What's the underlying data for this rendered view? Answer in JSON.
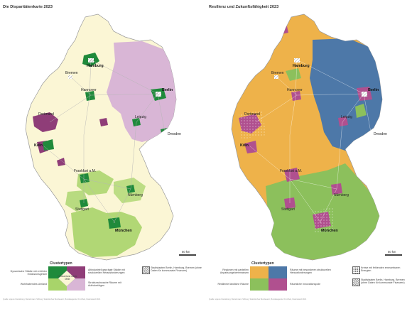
{
  "left": {
    "title": "Die Disparitätenkarte 2023",
    "legend_title": "Clustertypen",
    "legend": [
      {
        "label": "Dynamische Städte mit erhöhter Exklusionsgefahr",
        "color": "#1f8a3b"
      },
      {
        "label": "Wohlhabendes Umland",
        "color": "#a8d46a"
      },
      {
        "label": "Altindustriell geprägte Städte mit strukturellen Herausforderungen",
        "color": "#8f3d78"
      },
      {
        "label": "Strukturschwache Räume mit Aufholerfolgen",
        "color": "#d9b6d6"
      },
      {
        "label": "Deutschland solide Mitte",
        "color": "#fbf6d5"
      },
      {
        "label": "Stadtstaaten Berlin, Hamburg, Bremen (ohne Daten für kommunale Finanzen)",
        "color": "hatch"
      }
    ],
    "scale": "50 km",
    "source": "Quelle: eigene Darstellung, Bertelsmann Stiftung, Statistisches Bundesamt, Bundesagentur für Arbeit, Datenstand 2021",
    "cities": [
      {
        "name": "Hamburg",
        "bold": true
      },
      {
        "name": "Bremen",
        "bold": false
      },
      {
        "name": "Hannover",
        "bold": false
      },
      {
        "name": "Berlin",
        "bold": true
      },
      {
        "name": "Dortmund",
        "bold": false
      },
      {
        "name": "Köln",
        "bold": true
      },
      {
        "name": "Leipzig",
        "bold": false
      },
      {
        "name": "Dresden",
        "bold": false
      },
      {
        "name": "Frankfurt a.M.",
        "bold": false
      },
      {
        "name": "Nürnberg",
        "bold": false
      },
      {
        "name": "Stuttgart",
        "bold": false
      },
      {
        "name": "München",
        "bold": true
      }
    ]
  },
  "right": {
    "title": "Resilienz und Zukunftsfähigkeit 2023",
    "legend_title": "Clustertypen",
    "legend": [
      {
        "label": "Regionen mit partiellen Anpassungshemmnissen",
        "color": "#eeb24a"
      },
      {
        "label": "Resiliente ländliche Räume",
        "color": "#8cc05c"
      },
      {
        "label": "Räume mit besonderen strukturellen Herausforderungen",
        "color": "#4d78a8"
      },
      {
        "label": "Räumliche Innovationspole",
        "color": "#b0508f"
      },
      {
        "label": "Kreise mit fehlenden erneuerbaren Energien",
        "color": "dots"
      },
      {
        "label": "Stadtstaaten Berlin, Hamburg, Bremen (ohne Daten für kommunale Finanzen)",
        "color": "hatch"
      }
    ],
    "scale": "50 km",
    "source": "Quelle: eigene Darstellung, Bertelsmann Stiftung, Statistisches Bundesamt, Bundesagentur für Arbeit, Datenstand 2021",
    "cities": [
      {
        "name": "Hamburg",
        "bold": true
      },
      {
        "name": "Bremen",
        "bold": false
      },
      {
        "name": "Hannover",
        "bold": false
      },
      {
        "name": "Berlin",
        "bold": true
      },
      {
        "name": "Dortmund",
        "bold": false
      },
      {
        "name": "Köln",
        "bold": true
      },
      {
        "name": "Leipzig",
        "bold": false
      },
      {
        "name": "Dresden",
        "bold": false
      },
      {
        "name": "Frankfurt a.M.",
        "bold": false
      },
      {
        "name": "Nürnberg",
        "bold": false
      },
      {
        "name": "Stuttgart",
        "bold": false
      },
      {
        "name": "München",
        "bold": true
      }
    ]
  }
}
